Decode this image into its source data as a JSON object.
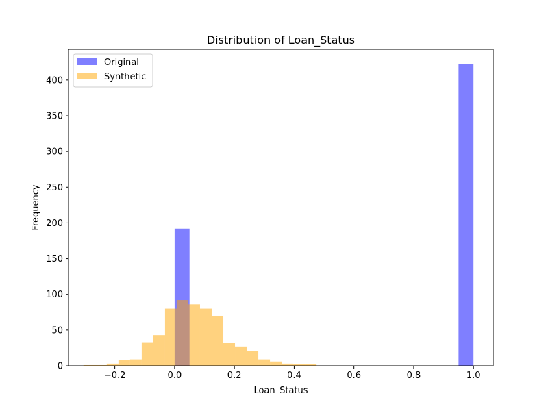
{
  "chart_data": {
    "type": "histogram",
    "title": "Distribution of Loan_Status",
    "xlabel": "Loan_Status",
    "ylabel": "Frequency",
    "xlim": [
      -0.355,
      1.066
    ],
    "ylim": [
      0,
      443
    ],
    "xticks": [
      -0.2,
      0.0,
      0.2,
      0.4,
      0.6,
      0.8,
      1.0
    ],
    "xtick_labels": [
      "−0.2",
      "0.0",
      "0.2",
      "0.4",
      "0.6",
      "0.8",
      "1.0"
    ],
    "yticks": [
      0,
      50,
      100,
      150,
      200,
      250,
      300,
      350,
      400
    ],
    "ytick_labels": [
      "0",
      "50",
      "100",
      "150",
      "200",
      "250",
      "300",
      "350",
      "400"
    ],
    "grid": false,
    "legend_position": "top-left",
    "series": [
      {
        "name": "Original",
        "color": "#0000ff",
        "opacity": 0.5,
        "bins": [
          {
            "x0": 0.0,
            "x1": 0.05,
            "count": 192
          },
          {
            "x0": 0.95,
            "x1": 1.0,
            "count": 422
          }
        ]
      },
      {
        "name": "Synthetic",
        "color": "#ffa500",
        "opacity": 0.5,
        "bins": [
          {
            "x0": -0.305,
            "x1": -0.266,
            "count": 1
          },
          {
            "x0": -0.266,
            "x1": -0.227,
            "count": 1
          },
          {
            "x0": -0.227,
            "x1": -0.188,
            "count": 3
          },
          {
            "x0": -0.188,
            "x1": -0.149,
            "count": 8
          },
          {
            "x0": -0.149,
            "x1": -0.11,
            "count": 9
          },
          {
            "x0": -0.11,
            "x1": -0.071,
            "count": 33
          },
          {
            "x0": -0.071,
            "x1": -0.032,
            "count": 43
          },
          {
            "x0": -0.032,
            "x1": 0.007,
            "count": 80
          },
          {
            "x0": 0.007,
            "x1": 0.046,
            "count": 92
          },
          {
            "x0": 0.046,
            "x1": 0.085,
            "count": 86
          },
          {
            "x0": 0.085,
            "x1": 0.124,
            "count": 80
          },
          {
            "x0": 0.124,
            "x1": 0.163,
            "count": 70
          },
          {
            "x0": 0.163,
            "x1": 0.202,
            "count": 32
          },
          {
            "x0": 0.202,
            "x1": 0.241,
            "count": 27
          },
          {
            "x0": 0.241,
            "x1": 0.28,
            "count": 21
          },
          {
            "x0": 0.28,
            "x1": 0.319,
            "count": 9
          },
          {
            "x0": 0.319,
            "x1": 0.358,
            "count": 6
          },
          {
            "x0": 0.358,
            "x1": 0.397,
            "count": 3
          },
          {
            "x0": 0.397,
            "x1": 0.436,
            "count": 2
          },
          {
            "x0": 0.436,
            "x1": 0.475,
            "count": 2
          }
        ]
      }
    ]
  }
}
